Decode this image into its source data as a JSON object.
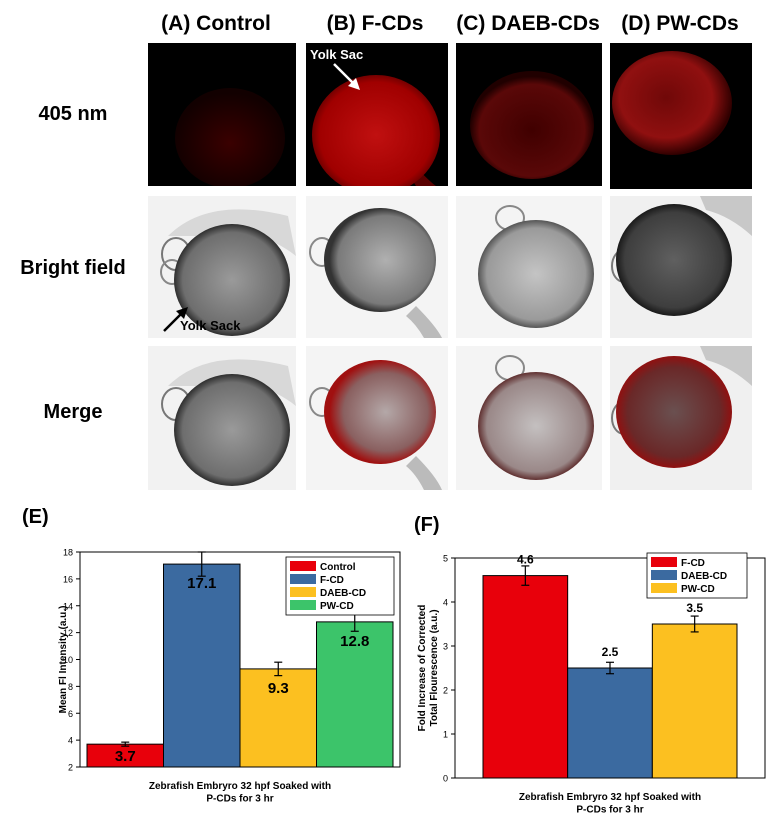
{
  "columns": [
    "(A) Control",
    "(B) F-CDs",
    "(C) DAEB-CDs",
    "(D) PW-CDs"
  ],
  "rows": [
    "405 nm",
    "Bright field",
    "Merge"
  ],
  "annotations": {
    "yolk_sac": "Yolk Sac",
    "yolk_sack": "Yolk Sack"
  },
  "colors": {
    "red": "#e8000b",
    "blue": "#3b6aa0",
    "yellow": "#fcc020",
    "green": "#3cc46a"
  },
  "chart_data": [
    {
      "panel": "(E)",
      "type": "bar",
      "xlabel": "Zebrafish Embryro 32 hpf Soaked with P-CDs for 3 hr",
      "ylabel": "Mean Fl Intensity (a.u.)",
      "ylim": [
        2,
        18
      ],
      "yticks": [
        2,
        4,
        6,
        8,
        10,
        12,
        14,
        16,
        18
      ],
      "legend_position": "top-right",
      "series": [
        {
          "name": "Control",
          "value": 3.7,
          "error": 0.15,
          "label": "3.7",
          "color": "#e8000b"
        },
        {
          "name": "F-CD",
          "value": 17.1,
          "error": 0.9,
          "label": "17.1",
          "color": "#3b6aa0"
        },
        {
          "name": "DAEB-CD",
          "value": 9.3,
          "error": 0.5,
          "label": "9.3",
          "color": "#fcc020"
        },
        {
          "name": "PW-CD",
          "value": 12.8,
          "error": 0.7,
          "label": "12.8",
          "color": "#3cc46a"
        }
      ]
    },
    {
      "panel": "(F)",
      "type": "bar",
      "xlabel": "Zebrafish Embryro 32 hpf Soaked with P-CDs for 3 hr",
      "ylabel": "Fold Increase of Corrected Total Flourescence (a.u.)",
      "ylim": [
        0,
        5
      ],
      "yticks": [
        0,
        1,
        2,
        3,
        4,
        5
      ],
      "legend_position": "top-right",
      "series": [
        {
          "name": "F-CD",
          "value": 4.6,
          "error": 0.22,
          "label": "4.6",
          "color": "#e8000b"
        },
        {
          "name": "DAEB-CD",
          "value": 2.5,
          "error": 0.13,
          "label": "2.5",
          "color": "#3b6aa0"
        },
        {
          "name": "PW-CD",
          "value": 3.5,
          "error": 0.18,
          "label": "3.5",
          "color": "#fcc020"
        }
      ]
    }
  ]
}
